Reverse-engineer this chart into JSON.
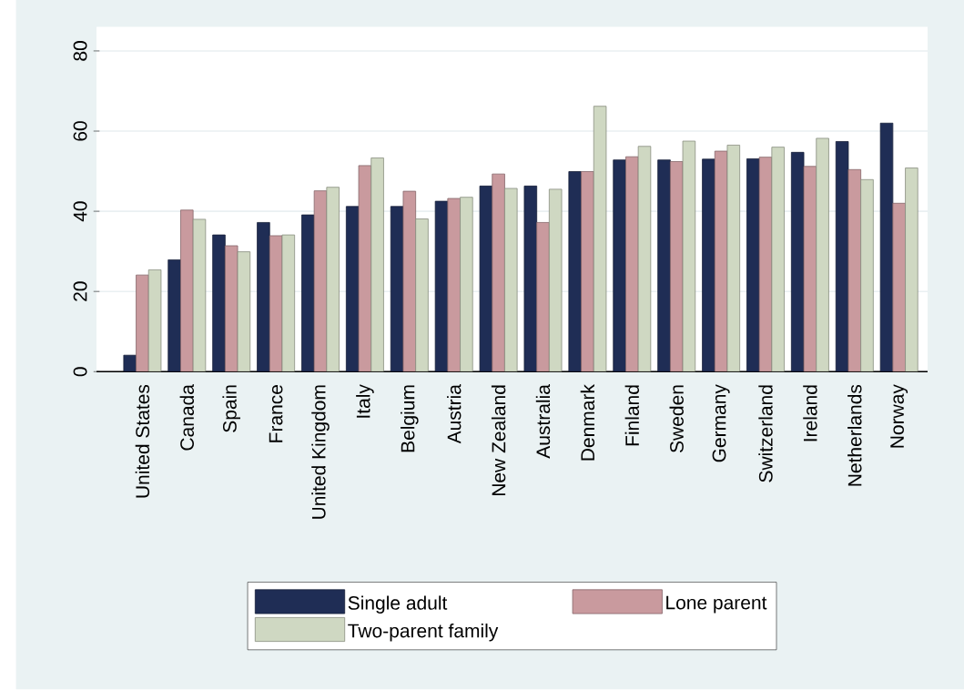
{
  "chart_data": {
    "type": "bar",
    "categories": [
      "United States",
      "Canada",
      "Spain",
      "France",
      "United Kingdom",
      "Italy",
      "Belgium",
      "Austria",
      "New Zealand",
      "Australia",
      "Denmark",
      "Finland",
      "Sweden",
      "Germany",
      "Switzerland",
      "Ireland",
      "Netherlands",
      "Norway"
    ],
    "series": [
      {
        "name": "Single adult",
        "color": "#1f2d55",
        "values": [
          4.1,
          27.9,
          34.1,
          37.2,
          39.1,
          41.2,
          41.2,
          42.5,
          46.3,
          46.3,
          49.9,
          52.8,
          52.8,
          53.0,
          53.1,
          54.7,
          57.4,
          62.0
        ]
      },
      {
        "name": "Lone parent",
        "color": "#c99a9e",
        "values": [
          24.1,
          40.3,
          31.4,
          33.9,
          45.1,
          51.4,
          45.0,
          43.2,
          49.3,
          37.2,
          49.9,
          53.6,
          52.4,
          55.0,
          53.5,
          51.2,
          50.4,
          42.0
        ]
      },
      {
        "name": "Two-parent family",
        "color": "#cfd8c2",
        "values": [
          25.4,
          38.0,
          29.9,
          34.1,
          46.0,
          53.3,
          38.1,
          43.5,
          45.7,
          45.5,
          66.2,
          56.2,
          57.5,
          56.5,
          56.0,
          58.2,
          47.9,
          50.8
        ]
      }
    ],
    "ylim": [
      0,
      86
    ],
    "yticks": [
      0,
      20,
      40,
      60,
      80
    ],
    "grid": "y",
    "legend": "bottom"
  }
}
